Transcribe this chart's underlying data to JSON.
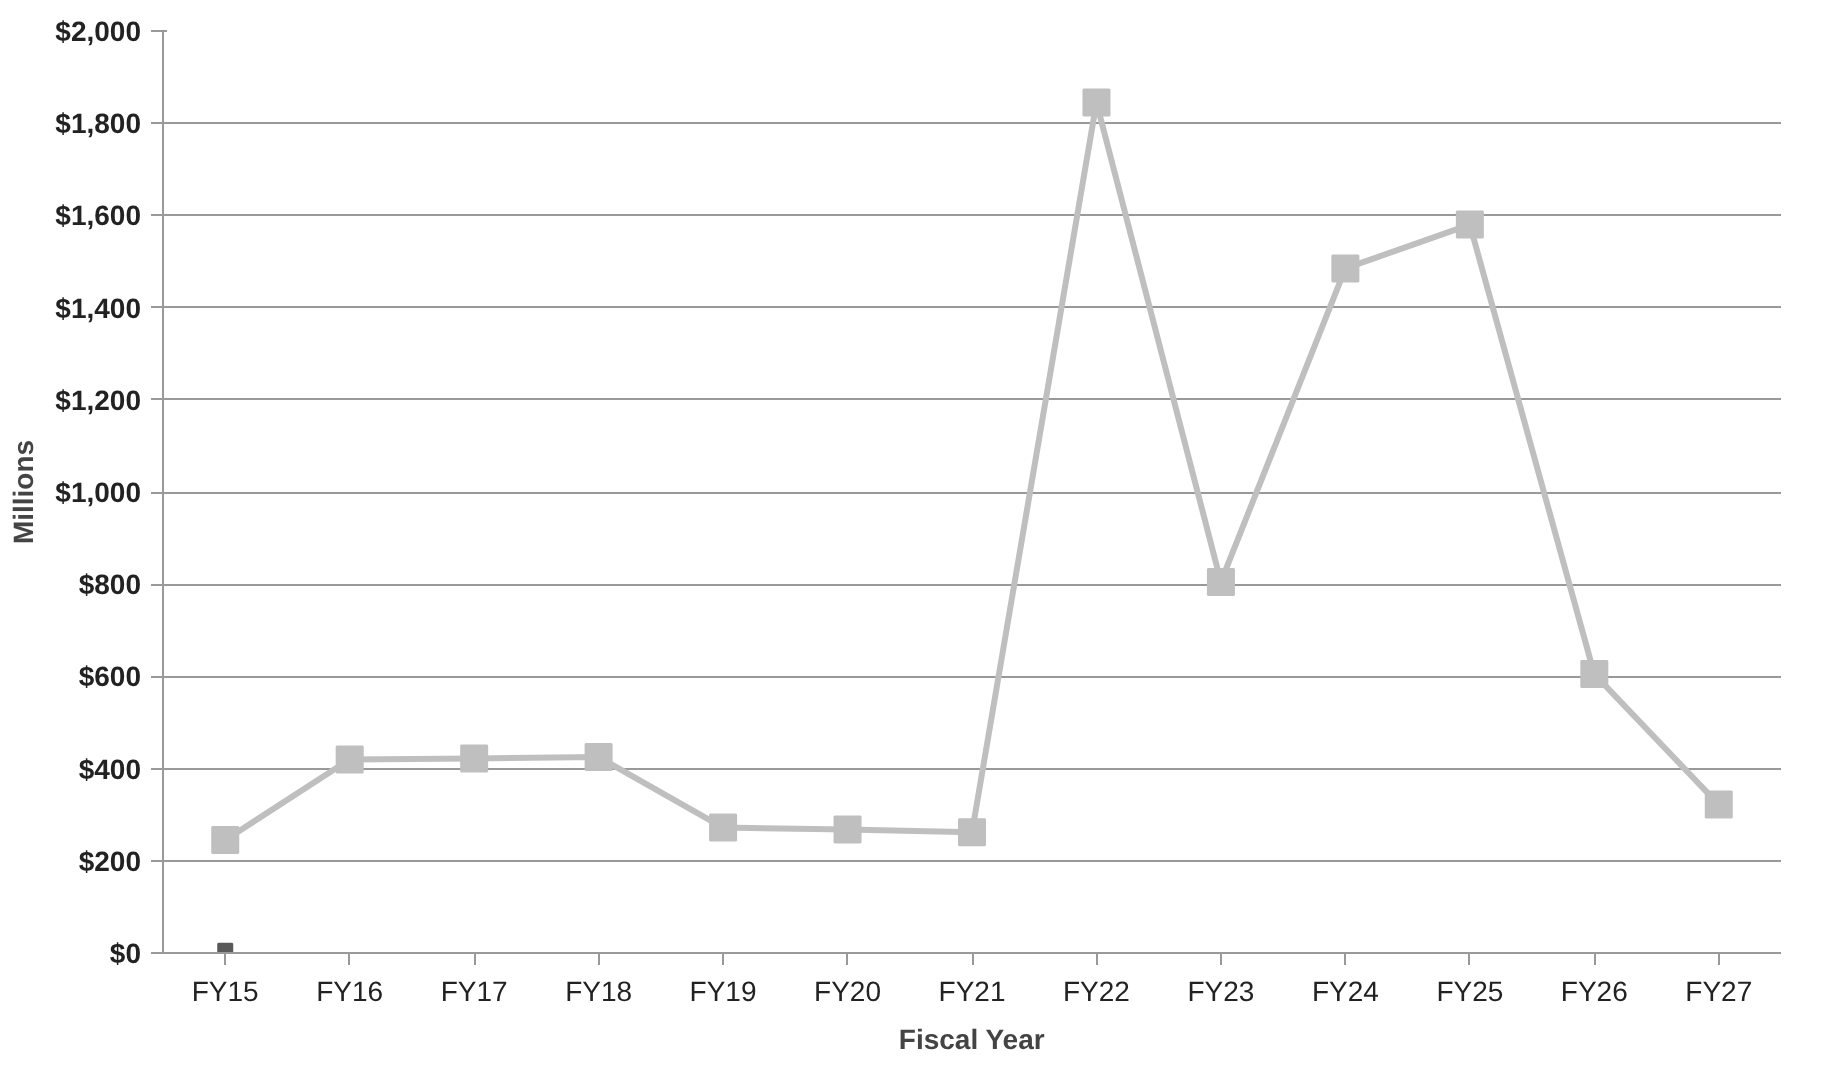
{
  "chart_data": {
    "type": "line",
    "xlabel": "Fiscal Year",
    "ylabel": "Millions",
    "categories": [
      "FY15",
      "FY16",
      "FY17",
      "FY18",
      "FY19",
      "FY20",
      "FY21",
      "FY22",
      "FY23",
      "FY24",
      "FY25",
      "FY26",
      "FY27"
    ],
    "series": [
      {
        "color": "#bfbfbf",
        "values": [
          245,
          420,
          422,
          425,
          272,
          268,
          262,
          1845,
          805,
          1485,
          1580,
          605,
          322
        ]
      },
      {
        "color": "#595959",
        "values": [
          5,
          null,
          null,
          null,
          null,
          null,
          null,
          null,
          null,
          null,
          null,
          null,
          null
        ]
      }
    ],
    "ylim": [
      0,
      2000
    ],
    "yticks": [
      {
        "value": 0,
        "label": "$0"
      },
      {
        "value": 200,
        "label": "$200"
      },
      {
        "value": 400,
        "label": "$400"
      },
      {
        "value": 600,
        "label": "$600"
      },
      {
        "value": 800,
        "label": "$800"
      },
      {
        "value": 1000,
        "label": "$1,000"
      },
      {
        "value": 1200,
        "label": "$1,200"
      },
      {
        "value": 1400,
        "label": "$1,400"
      },
      {
        "value": 1600,
        "label": "$1,600"
      },
      {
        "value": 1800,
        "label": "$1,800"
      },
      {
        "value": 2000,
        "label": "$2,000"
      }
    ],
    "grid": "y",
    "marker": "square",
    "line_style": "solid"
  }
}
